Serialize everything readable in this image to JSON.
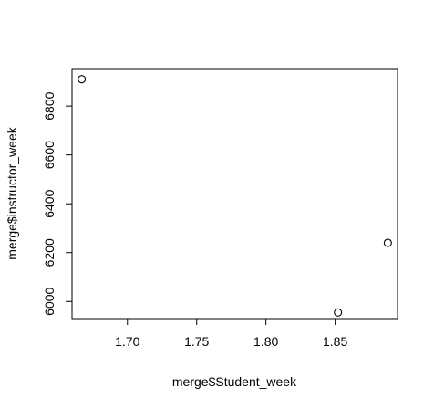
{
  "chart_data": {
    "type": "scatter",
    "title": "",
    "xlabel": "merge$Student_week",
    "ylabel": "merge$instructor_week",
    "xlim": [
      1.66,
      1.895
    ],
    "ylim": [
      5930,
      6950
    ],
    "x_ticks": [
      1.7,
      1.75,
      1.8,
      1.85
    ],
    "x_tick_labels": [
      "1.70",
      "1.75",
      "1.80",
      "1.85"
    ],
    "y_ticks": [
      6000,
      6200,
      6400,
      6600,
      6800
    ],
    "y_tick_labels": [
      "6000",
      "6200",
      "6400",
      "6600",
      "6800"
    ],
    "grid": false,
    "legend": "none",
    "marker": "open-circle",
    "colors": {
      "points": "#000000",
      "axes": "#000000",
      "background": "#ffffff"
    },
    "points": [
      {
        "x": 1.667,
        "y": 6910
      },
      {
        "x": 1.852,
        "y": 5955
      },
      {
        "x": 1.888,
        "y": 6240
      }
    ]
  }
}
